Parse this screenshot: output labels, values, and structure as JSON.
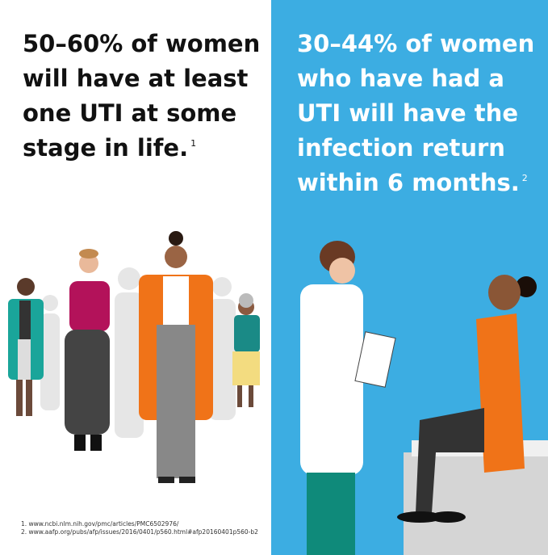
{
  "left": {
    "headline": [
      "50–60% of women",
      "will have at least",
      "one UTI at some",
      "stage in life."
    ],
    "ref": "1"
  },
  "right": {
    "headline": [
      "30–44% of women",
      "who have had a",
      "UTI will have the",
      "infection return",
      "within 6 months."
    ],
    "ref": "2"
  },
  "footnotes": [
    "1. www.ncbi.nlm.nih.gov/pmc/articles/PMC6502976/",
    "2. www.aafp.org/pubs/afp/issues/2016/0401/p560.html#afp20160401p560-b2"
  ]
}
